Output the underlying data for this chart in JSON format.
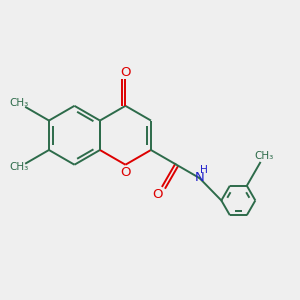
{
  "background_color": "#efefef",
  "bond_color": "#2d6b4a",
  "oxygen_color": "#dd0000",
  "nitrogen_color": "#2020cc",
  "line_width": 1.4,
  "figsize": [
    3.0,
    3.0
  ],
  "dpi": 100,
  "xlim": [
    0,
    10
  ],
  "ylim": [
    0,
    10
  ]
}
